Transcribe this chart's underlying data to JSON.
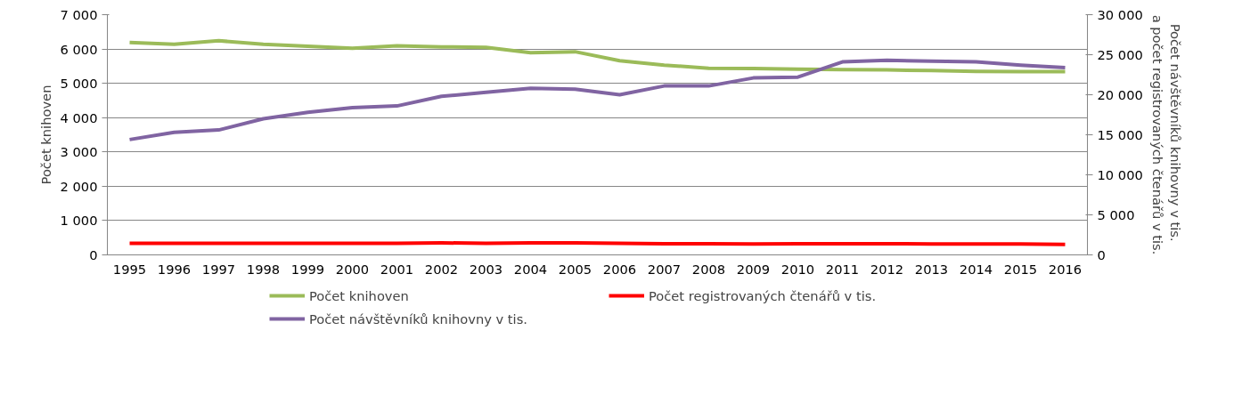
{
  "chart_data": {
    "type": "line",
    "categories": [
      "1995",
      "1996",
      "1997",
      "1998",
      "1999",
      "2000",
      "2001",
      "2002",
      "2003",
      "2004",
      "2005",
      "2006",
      "2007",
      "2008",
      "2009",
      "2010",
      "2011",
      "2012",
      "2013",
      "2014",
      "2015",
      "2016"
    ],
    "series": [
      {
        "name": "Počet knihoven",
        "color": "#9bbb59",
        "values": [
          6190,
          6140,
          6240,
          6140,
          6080,
          6020,
          6090,
          6060,
          6050,
          5890,
          5920,
          5660,
          5530,
          5440,
          5430,
          5410,
          5400,
          5390,
          5370,
          5350,
          5340,
          5340
        ]
      },
      {
        "name": "Počet registrovaných čtenářů v tis.",
        "color": "#ff0000",
        "axis": "y2",
        "values": [
          1450,
          1450,
          1450,
          1450,
          1450,
          1450,
          1450,
          1500,
          1450,
          1500,
          1500,
          1450,
          1400,
          1400,
          1350,
          1400,
          1400,
          1400,
          1350,
          1350,
          1350,
          1300
        ]
      },
      {
        "name": "Počet návštěvníků knihovny v tis.",
        "color": "#8064a2",
        "axis": "y2",
        "values": [
          14400,
          15300,
          15600,
          17000,
          17800,
          18400,
          18600,
          19800,
          20300,
          20800,
          20700,
          20000,
          21100,
          21100,
          22100,
          22200,
          24100,
          24300,
          24200,
          24100,
          23700,
          23400
        ]
      }
    ],
    "ylabel": "Počet knihoven",
    "y2label": "Počet  návštěvníků knihovny v tis.\na počet registrovaných čtenářů v tis.",
    "ylim": [
      0,
      7000
    ],
    "yticks": [
      0,
      {
        "value": 1000,
        "label": "1 000"
      },
      {
        "value": 2000,
        "label": "2 000"
      },
      {
        "value": 3000,
        "label": "3 000"
      },
      {
        "value": 4000,
        "label": "4 000"
      },
      {
        "value": 5000,
        "label": "5 000"
      },
      {
        "value": 6000,
        "label": "6 000"
      },
      {
        "value": 7000,
        "label": "7 000"
      }
    ],
    "y2lim": [
      0,
      30000
    ],
    "y2ticks": [
      0,
      {
        "value": 5000,
        "label": "5 000"
      },
      {
        "value": 10000,
        "label": "10 000"
      },
      {
        "value": 15000,
        "label": "15 000"
      },
      {
        "value": 20000,
        "label": "20 000"
      },
      {
        "value": 25000,
        "label": "25 000"
      },
      {
        "value": 30000,
        "label": "30 000"
      }
    ],
    "grid": "y",
    "legend": "bottom",
    "line_style": "solid",
    "marker": "none"
  }
}
